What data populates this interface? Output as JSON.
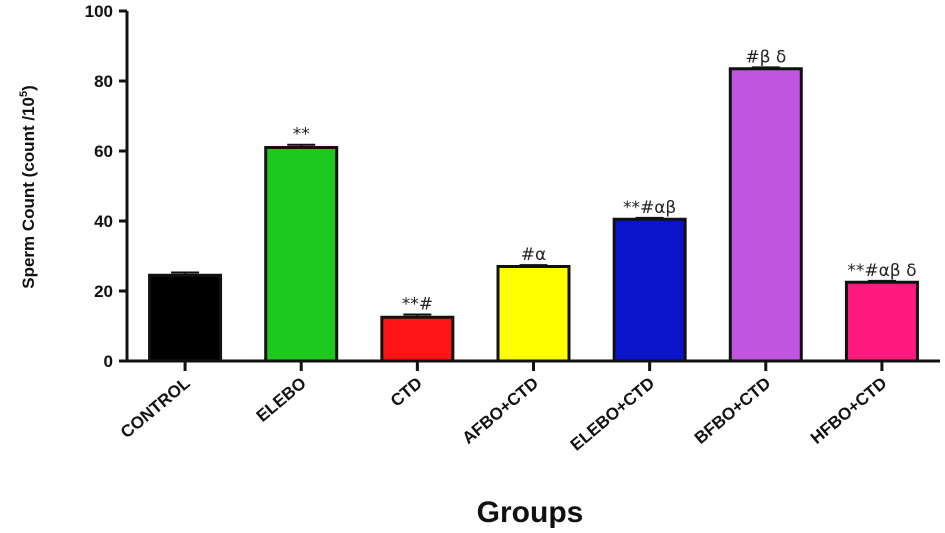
{
  "chart_data": {
    "type": "bar",
    "categories": [
      "CONTROL",
      "ELEBO",
      "CTD",
      "AFBO+CTD",
      "ELEBO+CTD",
      "BFBO+CTD",
      "HFBO+CTD"
    ],
    "values": [
      24.5,
      61,
      12.5,
      27,
      40.5,
      83.5,
      22.5
    ],
    "errors": [
      0.8,
      0.8,
      0.8,
      0.4,
      0.4,
      0.4,
      0.4
    ],
    "annotations": [
      "",
      "**",
      "**#",
      "#α",
      "**#αβ",
      "#β δ",
      "**#αβ δ"
    ],
    "colors": [
      "#000000",
      "#1ec81e",
      "#ff1515",
      "#ffff00",
      "#0a14c8",
      "#c055e0",
      "#ff1a80"
    ],
    "title": "",
    "xlabel": "Groups",
    "ylabel": "Sperm Count  (count /10",
    "ylabel_superscript": "5",
    "ylabel_suffix": ")",
    "ylim": [
      0,
      100
    ],
    "yticks": [
      0,
      20,
      40,
      60,
      80,
      100
    ],
    "grid": false,
    "legend": "none"
  }
}
